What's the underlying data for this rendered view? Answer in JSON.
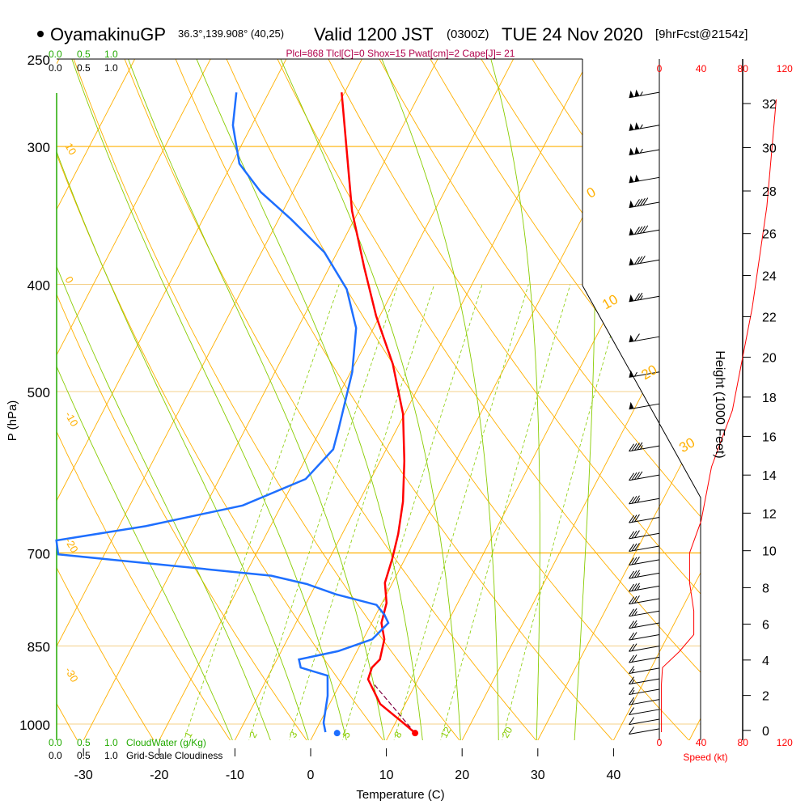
{
  "header": {
    "station": "OyamakinuGP",
    "coords": "36.3°,139.908° (40,25)",
    "valid": "Valid 1200 JST",
    "utc": "(0300Z)",
    "date": "TUE 24 Nov 2020",
    "forecast": "[9hrFcst@2154z]",
    "stats": "Plcl=868 Tlcl[C]=0 Shox=15 Pwat[cm]=2 Cape[J]= 21"
  },
  "cloud_scale": {
    "ticks": [
      "0.0",
      "0.5",
      "1.0"
    ],
    "cloudwater_label": "CloudWater (g/Kg)",
    "cloudiness_label": "Grid-Scale Cloudiness"
  },
  "colors": {
    "temperature": "#ff0000",
    "dewpoint": "#1e6fff",
    "isotherm": "#ffb000",
    "moist": "#88cc00",
    "mixing": "#88cc00",
    "parcel": "#800040",
    "stats": "#b0004a",
    "cloudwater": "#22aa00"
  },
  "chart_data": {
    "type": "skew-t",
    "title": "OyamakinuGP Valid 1200 JST (0300Z) TUE 24 Nov 2020",
    "xlabel": "Temperature (C)",
    "ylabel": "P (hPa)",
    "pressure_ticks": [
      "250",
      "300",
      "400",
      "500",
      "700",
      "850",
      "1000"
    ],
    "temperature_ticks": [
      "-30",
      "-20",
      "-10",
      "0",
      "10",
      "20",
      "30",
      "40"
    ],
    "isotherm_labels": [
      "0",
      "10",
      "20",
      "30"
    ],
    "dry_adiabat_labels": [
      "10",
      "0",
      "-10",
      "-20",
      "-30"
    ],
    "mixing_ratio_labels": [
      "1",
      "2",
      "3",
      "5",
      "8",
      "12",
      "20"
    ],
    "temperature": {
      "p": [
        1019,
        1000,
        959,
        911,
        889,
        874,
        838,
        810,
        777,
        745,
        708,
        673,
        629,
        578,
        524,
        472,
        427,
        386,
        343,
        268
      ],
      "T": [
        13.3,
        11.3,
        6.7,
        3.4,
        3.1,
        3.6,
        2.8,
        1.3,
        0.6,
        -1.0,
        -1.7,
        -2.6,
        -4.2,
        -6.8,
        -10.2,
        -15.0,
        -20.5,
        -25.4,
        -30.9,
        -40.4
      ]
    },
    "dewpoint": {
      "p": [
        1017,
        997,
        943,
        904,
        889,
        874,
        859,
        838,
        824,
        810,
        796,
        780,
        763,
        747,
        734,
        702,
        682,
        662,
        634,
        600,
        564,
        540,
        480,
        438,
        404,
        374,
        349,
        330,
        311,
        287,
        268
      ],
      "Td": [
        1.4,
        0.5,
        -0.8,
        -2.2,
        -6.3,
        -7.1,
        -2.5,
        1.2,
        1.7,
        2.2,
        1.1,
        -0.6,
        -6.7,
        -11.2,
        -16.5,
        -46.1,
        -47.3,
        -36.5,
        -25.1,
        -18.6,
        -17.0,
        -17.7,
        -19.8,
        -22.3,
        -26.2,
        -31.7,
        -38.4,
        -44.2,
        -49.0,
        -52.5,
        -54.3
      ]
    },
    "surface": {
      "p": 1019,
      "T": 13.3,
      "Td": 3.0
    },
    "parcel": {
      "p": [
        1019,
        919
      ],
      "T": [
        13.3,
        4.4
      ]
    },
    "wind": {
      "p": [
        268,
        287,
        302,
        320,
        337,
        357,
        380,
        410,
        446,
        480,
        513,
        560,
        595,
        625,
        650,
        672,
        690,
        710,
        730,
        750,
        770,
        790,
        810,
        830,
        850,
        870,
        890,
        910,
        930,
        950,
        970,
        990,
        1010
      ],
      "speed_kt": [
        105,
        105,
        105,
        100,
        90,
        90,
        80,
        75,
        60,
        55,
        50,
        45,
        40,
        35,
        30,
        30,
        30,
        30,
        35,
        35,
        30,
        25,
        25,
        20,
        20,
        20,
        15,
        15,
        15,
        15,
        10,
        10,
        10
      ]
    },
    "speed_axis": {
      "label": "Speed (kt)",
      "ticks": [
        "0",
        "40",
        "80",
        "120"
      ]
    },
    "speed_profile": {
      "p": [
        1017,
        920,
        889,
        860,
        830,
        790,
        745,
        700,
        655,
        585,
        520,
        420,
        340,
        272
      ],
      "speed_kt": [
        2,
        2,
        3,
        19,
        33,
        33,
        29,
        29,
        40,
        50,
        70,
        89,
        103,
        112
      ]
    },
    "height_axis": {
      "label": "Height (1000 Feet)",
      "ticks": [
        "0",
        "2",
        "4",
        "6",
        "8",
        "10",
        "12",
        "14",
        "16",
        "18",
        "20",
        "22",
        "24",
        "26",
        "28",
        "30",
        "32"
      ]
    }
  }
}
